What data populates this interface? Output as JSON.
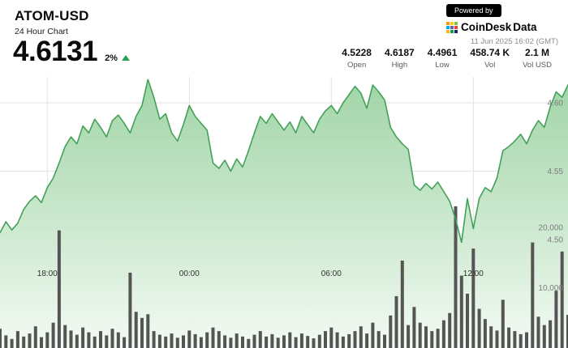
{
  "header": {
    "symbol": "ATOM-USD",
    "subtitle": "24 Hour Chart",
    "price": "4.6131",
    "change_percent": "2%",
    "change_direction": "up"
  },
  "branding": {
    "powered_by": "Powered by",
    "logo_text_1": "CoinDesk",
    "logo_text_2": "Data",
    "timestamp": "11 Jun 2025 16:02 (GMT)"
  },
  "stats": [
    {
      "value": "4.5228",
      "label": "Open"
    },
    {
      "value": "4.6187",
      "label": "High"
    },
    {
      "value": "4.4961",
      "label": "Low"
    },
    {
      "value": "458.74 K",
      "label": "Vol"
    },
    {
      "value": "2.1 M",
      "label": "Vol USD"
    }
  ],
  "chart_data": {
    "type": "area",
    "title": "ATOM-USD 24 Hour Chart",
    "x_axis": {
      "total_hours": 24,
      "ticks": [
        {
          "label": "18:00",
          "hour_offset": 2
        },
        {
          "label": "00:00",
          "hour_offset": 8
        },
        {
          "label": "06:00",
          "hour_offset": 14
        },
        {
          "label": "12:00",
          "hour_offset": 20
        }
      ]
    },
    "y_axis_price": {
      "ticks": [
        {
          "label": "4.60",
          "value": 4.6
        },
        {
          "label": "4.55",
          "value": 4.55
        },
        {
          "label": "4.50",
          "value": 4.5
        }
      ]
    },
    "y_axis_volume": {
      "ticks": [
        {
          "label": "20,000",
          "value": 20000
        },
        {
          "label": "10,000",
          "value": 10000
        }
      ]
    },
    "series": [
      {
        "name": "price",
        "values": [
          4.505,
          4.513,
          4.507,
          4.512,
          4.522,
          4.528,
          4.532,
          4.527,
          4.538,
          4.545,
          4.556,
          4.568,
          4.575,
          4.57,
          4.583,
          4.578,
          4.588,
          4.582,
          4.575,
          4.587,
          4.591,
          4.585,
          4.578,
          4.59,
          4.598,
          4.617,
          4.604,
          4.588,
          4.592,
          4.578,
          4.572,
          4.584,
          4.598,
          4.59,
          4.585,
          4.58,
          4.556,
          4.552,
          4.558,
          4.55,
          4.559,
          4.553,
          4.565,
          4.578,
          4.59,
          4.585,
          4.592,
          4.586,
          4.58,
          4.586,
          4.578,
          4.59,
          4.584,
          4.578,
          4.588,
          4.594,
          4.598,
          4.592,
          4.6,
          4.606,
          4.612,
          4.607,
          4.596,
          4.613,
          4.608,
          4.602,
          4.582,
          4.575,
          4.57,
          4.566,
          4.54,
          4.536,
          4.541,
          4.537,
          4.542,
          4.535,
          4.528,
          4.515,
          4.498,
          4.53,
          4.508,
          4.53,
          4.538,
          4.535,
          4.545,
          4.565,
          4.568,
          4.572,
          4.577,
          4.57,
          4.58,
          4.587,
          4.582,
          4.597,
          4.608,
          4.604,
          4.613
        ]
      },
      {
        "name": "volume",
        "values": [
          3200,
          2100,
          1500,
          2800,
          1900,
          2400,
          3600,
          1800,
          2600,
          4200,
          19500,
          3800,
          2900,
          2200,
          3400,
          2600,
          1900,
          2800,
          2100,
          3200,
          2600,
          1800,
          12500,
          6000,
          5000,
          5600,
          2800,
          2200,
          1900,
          2400,
          1700,
          2100,
          2900,
          2300,
          1800,
          2600,
          3400,
          2800,
          2100,
          1700,
          2400,
          1900,
          1500,
          2200,
          2800,
          1900,
          2300,
          1700,
          2100,
          2600,
          1800,
          2400,
          2000,
          1600,
          2200,
          2800,
          3400,
          2600,
          1900,
          2300,
          2800,
          3600,
          2400,
          4200,
          2800,
          2200,
          5400,
          8600,
          14500,
          3800,
          6800,
          4200,
          3600,
          2800,
          3200,
          4600,
          5800,
          23500,
          12000,
          9000,
          16500,
          6500,
          4800,
          3600,
          2900,
          8000,
          3400,
          2800,
          2300,
          2600,
          17500,
          5200,
          3800,
          4600,
          9500,
          16000,
          5500
        ]
      }
    ],
    "colors": {
      "line": "#43a257",
      "area_top": "#97d09e",
      "area_bottom": "#f3faf3",
      "volume_bar": "#555555",
      "grid": "#e3e3e3",
      "grid_light": "#ececec",
      "up_green": "#2aa052",
      "price_label": "#7d7d7d",
      "time_label": "#2f2f2f"
    },
    "logo_colors": [
      "#f79319",
      "#ffcf02",
      "#85bf4b",
      "#00a8e2",
      "#5f62ad",
      "#ee4036",
      "#fdb913",
      "#00a651",
      "#262262"
    ]
  }
}
